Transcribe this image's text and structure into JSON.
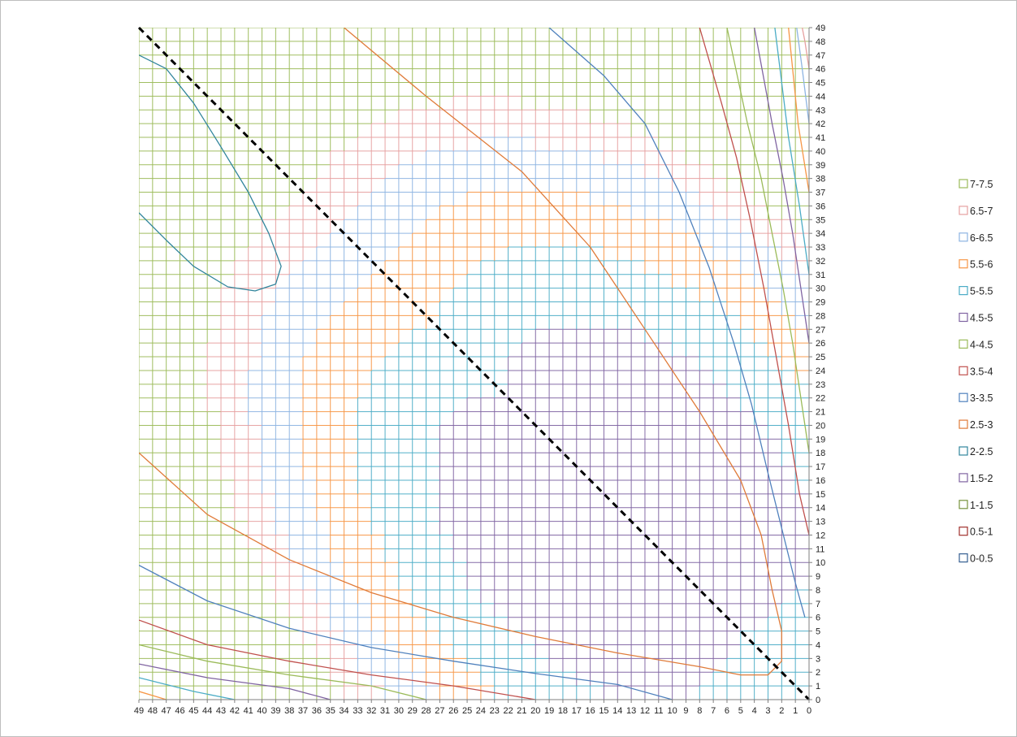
{
  "chart_data": {
    "type": "contour",
    "title": "",
    "xlabel": "",
    "ylabel": "",
    "x_axis": {
      "range": [
        49,
        0
      ],
      "reversed": true,
      "step": 1
    },
    "y_axis": {
      "range": [
        0,
        49
      ],
      "step": 1,
      "position": "right"
    },
    "x_ticks": [
      49,
      48,
      47,
      46,
      45,
      44,
      43,
      42,
      41,
      40,
      39,
      38,
      37,
      36,
      35,
      34,
      33,
      32,
      31,
      30,
      29,
      28,
      27,
      26,
      25,
      24,
      23,
      22,
      21,
      20,
      19,
      18,
      17,
      16,
      15,
      14,
      13,
      12,
      11,
      10,
      9,
      8,
      7,
      6,
      5,
      4,
      3,
      2,
      1,
      0
    ],
    "y_ticks": [
      0,
      1,
      2,
      3,
      4,
      5,
      6,
      7,
      8,
      9,
      10,
      11,
      12,
      13,
      14,
      15,
      16,
      17,
      18,
      19,
      20,
      21,
      22,
      23,
      24,
      25,
      26,
      27,
      28,
      29,
      30,
      31,
      32,
      33,
      34,
      35,
      36,
      37,
      38,
      39,
      40,
      41,
      42,
      43,
      44,
      45,
      46,
      47,
      48,
      49
    ],
    "grid": true,
    "legend_position": "right",
    "legend": [
      {
        "label": "7-7.5",
        "color": "#9bbb59"
      },
      {
        "label": "6.5-7",
        "color": "#e6a0a0"
      },
      {
        "label": "6-6.5",
        "color": "#8db4e2"
      },
      {
        "label": "5.5-6",
        "color": "#f79646"
      },
      {
        "label": "5-5.5",
        "color": "#4bacc6"
      },
      {
        "label": "4.5-5",
        "color": "#8064a2"
      },
      {
        "label": "4-4.5",
        "color": "#9bbb59"
      },
      {
        "label": "3.5-4",
        "color": "#c0504d"
      },
      {
        "label": "3-3.5",
        "color": "#4f81bd"
      },
      {
        "label": "2.5-3",
        "color": "#e07b39"
      },
      {
        "label": "2-2.5",
        "color": "#31859c"
      },
      {
        "label": "1.5-2",
        "color": "#8064a2"
      },
      {
        "label": "1-1.5",
        "color": "#77933c"
      },
      {
        "label": "0.5-1",
        "color": "#a0302c"
      },
      {
        "label": "0-0.5",
        "color": "#365f91"
      }
    ],
    "bands": [
      {
        "range": "3-3.5",
        "color": "#4f81bd"
      },
      {
        "range": "3.5-4",
        "color": "#c0504d"
      },
      {
        "range": "4-4.5",
        "color": "#9bbb59"
      },
      {
        "range": "4.5-5",
        "color": "#8064a2"
      },
      {
        "range": "5-5.5",
        "color": "#4bacc6"
      },
      {
        "range": "5.5-6",
        "color": "#f79646"
      },
      {
        "range": "6-6.5",
        "color": "#8db4e2"
      },
      {
        "range": "6.5-7",
        "color": "#e6a0a0"
      },
      {
        "range": "2.5-3",
        "color": "#e07b39"
      },
      {
        "range": "2-2.5",
        "color": "#31859c"
      }
    ],
    "contours": [
      {
        "level": 3,
        "color": "#e07b39",
        "points": [
          [
            49,
            18
          ],
          [
            44,
            13.5
          ],
          [
            38,
            10.2
          ],
          [
            32,
            7.8
          ],
          [
            26,
            6
          ],
          [
            20,
            4.6
          ],
          [
            14,
            3.4
          ],
          [
            8,
            2.4
          ],
          [
            5,
            1.8
          ],
          [
            3,
            1.8
          ],
          [
            2,
            2.8
          ],
          [
            2,
            5
          ],
          [
            2.7,
            8
          ],
          [
            3.5,
            12
          ],
          [
            5,
            16
          ],
          [
            8,
            21
          ],
          [
            12,
            27
          ],
          [
            16,
            33
          ],
          [
            21,
            38.5
          ],
          [
            28,
            44
          ],
          [
            34,
            49
          ]
        ]
      },
      {
        "level": 2.5,
        "color": "#31859c",
        "points": [
          [
            49,
            35.5
          ],
          [
            47,
            33.5
          ],
          [
            45,
            31.6
          ],
          [
            42.5,
            30.1
          ],
          [
            40.5,
            29.8
          ],
          [
            39,
            30.3
          ],
          [
            38.6,
            31.6
          ],
          [
            39.5,
            34
          ],
          [
            41,
            37
          ],
          [
            43,
            40.3
          ],
          [
            45,
            43.5
          ],
          [
            47,
            46
          ],
          [
            49,
            47
          ]
        ]
      },
      {
        "level": 3.5,
        "color": "#4f81bd",
        "points": [
          [
            49,
            9.8
          ],
          [
            44,
            7.2
          ],
          [
            38,
            5.2
          ],
          [
            32,
            3.8
          ],
          [
            26,
            2.8
          ],
          [
            20,
            1.9
          ],
          [
            14,
            1.1
          ],
          [
            10,
            0
          ],
          null,
          [
            0.3,
            6
          ],
          [
            1,
            8.5
          ],
          [
            2,
            12.5
          ],
          [
            3,
            16.5
          ],
          [
            4.2,
            21.5
          ],
          [
            5.5,
            26
          ],
          [
            7.3,
            31.5
          ],
          [
            9.5,
            37
          ],
          [
            12,
            42
          ],
          [
            15,
            45.5
          ],
          [
            19,
            49
          ]
        ]
      },
      {
        "level": 4,
        "color": "#c0504d",
        "points": [
          [
            49,
            5.8
          ],
          [
            44,
            4
          ],
          [
            38,
            2.8
          ],
          [
            32,
            1.8
          ],
          [
            26,
            1
          ],
          [
            20,
            0
          ],
          null,
          [
            0,
            12
          ],
          [
            0.7,
            15
          ],
          [
            1.5,
            20
          ],
          [
            2.4,
            25
          ],
          [
            3.3,
            30
          ],
          [
            4.3,
            35
          ],
          [
            5.3,
            39.5
          ],
          [
            6.4,
            43.5
          ],
          [
            8,
            49
          ]
        ]
      },
      {
        "level": 4.5,
        "color": "#9bbb59",
        "points": [
          [
            49,
            4
          ],
          [
            44,
            2.8
          ],
          [
            38,
            1.8
          ],
          [
            32,
            1
          ],
          [
            28,
            0
          ],
          null,
          [
            0,
            18
          ],
          [
            0.6,
            22
          ],
          [
            1.2,
            26
          ],
          [
            1.9,
            30
          ],
          [
            2.7,
            34
          ],
          [
            3.5,
            38
          ],
          [
            4.5,
            42
          ],
          [
            6,
            49
          ]
        ]
      },
      {
        "level": 5,
        "color": "#8064a2",
        "points": [
          [
            49,
            2.6
          ],
          [
            44,
            1.6
          ],
          [
            38,
            0.8
          ],
          [
            35,
            0
          ],
          null,
          [
            0,
            26
          ],
          [
            0.6,
            30
          ],
          [
            1.2,
            34
          ],
          [
            1.9,
            38
          ],
          [
            2.7,
            42
          ],
          [
            4,
            49
          ]
        ]
      },
      {
        "level": 5.5,
        "color": "#4bacc6",
        "points": [
          [
            49,
            1.6
          ],
          [
            45,
            0.6
          ],
          [
            42,
            0
          ],
          null,
          [
            0,
            31
          ],
          [
            0.7,
            36
          ],
          [
            1.5,
            41
          ],
          [
            2.5,
            49
          ]
        ]
      },
      {
        "level": 6,
        "color": "#f79646",
        "points": [
          [
            49,
            0.6
          ],
          [
            47,
            0
          ],
          null,
          [
            0,
            37
          ],
          [
            0.8,
            42
          ],
          [
            1.5,
            49
          ]
        ]
      },
      {
        "level": 6.5,
        "color": "#8db4e2",
        "points": [
          [
            0,
            42
          ],
          [
            0.5,
            46
          ],
          [
            0.9,
            49
          ]
        ]
      },
      {
        "level": 7,
        "color": "#e6a0a0",
        "points": [
          [
            0,
            46
          ],
          [
            0.3,
            48
          ],
          [
            0.5,
            49
          ]
        ]
      }
    ],
    "diagonal": {
      "from": [
        49,
        49
      ],
      "to": [
        0,
        0
      ],
      "style": "dashed",
      "color": "#000000"
    }
  }
}
